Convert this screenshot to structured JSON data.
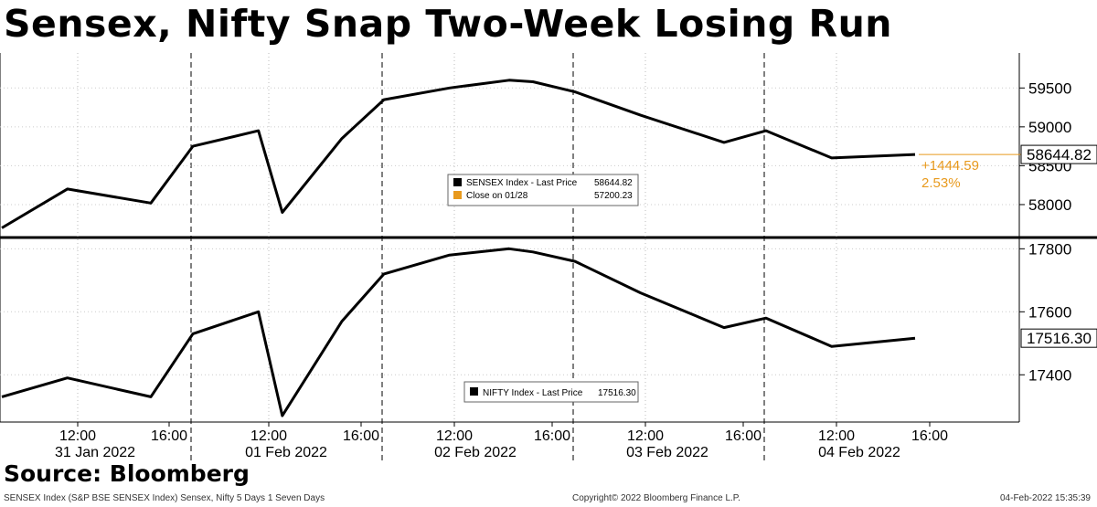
{
  "title": "Sensex, Nifty Snap Two-Week Losing Run",
  "source": "Source: Bloomberg",
  "footer": {
    "left": "SENSEX Index (S&P BSE SENSEX Index) Sensex, Nifty 5 Days 1 Seven Days",
    "center": "Copyright© 2022 Bloomberg Finance L.P.",
    "right": "04-Feb-2022 15:35:39"
  },
  "colors": {
    "line": "#000000",
    "accent": "#e89a1e",
    "grid": "#000000"
  },
  "chart_data": [
    {
      "type": "line",
      "panel": "top",
      "series": [
        {
          "name": "SENSEX Index - Last Price",
          "x": [
            "31 Jan 09:15",
            "31 Jan 12:00",
            "31 Jan 15:30",
            "01 Feb 09:15",
            "01 Feb 12:00",
            "01 Feb 13:00",
            "01 Feb 15:30",
            "02 Feb 09:15",
            "02 Feb 12:00",
            "02 Feb 14:30",
            "02 Feb 15:30",
            "03 Feb 09:15",
            "03 Feb 12:00",
            "03 Feb 15:30",
            "04 Feb 09:15",
            "04 Feb 12:00",
            "04 Feb 15:30"
          ],
          "y": [
            57700,
            58200,
            58020,
            58750,
            58950,
            57900,
            58850,
            59350,
            59500,
            59600,
            59580,
            59450,
            59150,
            58800,
            58950,
            58600,
            58644.82
          ]
        },
        {
          "name": "Close on 01/28",
          "value": 57200.23
        }
      ],
      "last_price_label": "58644.82",
      "change_abs": "+1444.59",
      "change_pct": "2.53%",
      "y_ticks": [
        "59500",
        "59000",
        "58500",
        "58000"
      ],
      "legend": [
        {
          "label": "SENSEX Index - Last Price",
          "value": "58644.82",
          "color": "#000000"
        },
        {
          "label": "Close on 01/28",
          "value": "57200.23",
          "color": "#e89a1e"
        }
      ],
      "ylim": [
        57600,
        59950
      ]
    },
    {
      "type": "line",
      "panel": "bottom",
      "series": [
        {
          "name": "NIFTY Index - Last Price",
          "x": [
            "31 Jan 09:15",
            "31 Jan 12:00",
            "31 Jan 15:30",
            "01 Feb 09:15",
            "01 Feb 12:00",
            "01 Feb 13:00",
            "01 Feb 15:30",
            "02 Feb 09:15",
            "02 Feb 12:00",
            "02 Feb 14:30",
            "02 Feb 15:30",
            "03 Feb 09:15",
            "03 Feb 12:00",
            "03 Feb 15:30",
            "04 Feb 09:15",
            "04 Feb 12:00",
            "04 Feb 15:30"
          ],
          "y": [
            17330,
            17390,
            17330,
            17530,
            17600,
            17270,
            17570,
            17720,
            17780,
            17800,
            17790,
            17760,
            17660,
            17550,
            17580,
            17490,
            17516.3
          ]
        }
      ],
      "last_price_label": "17516.30",
      "y_ticks": [
        "17800",
        "17600",
        "17400"
      ],
      "legend": [
        {
          "label": "NIFTY Index - Last Price",
          "value": "17516.30",
          "color": "#000000"
        }
      ],
      "ylim": [
        17250,
        17830
      ]
    }
  ],
  "x_axis": {
    "time_ticks": [
      "12:00",
      "16:00",
      "12:00",
      "16:00",
      "12:00",
      "16:00",
      "12:00",
      "16:00",
      "12:00",
      "16:00"
    ],
    "date_labels": [
      "31 Jan 2022",
      "01 Feb 2022",
      "02 Feb 2022",
      "03 Feb 2022",
      "04 Feb 2022"
    ]
  }
}
